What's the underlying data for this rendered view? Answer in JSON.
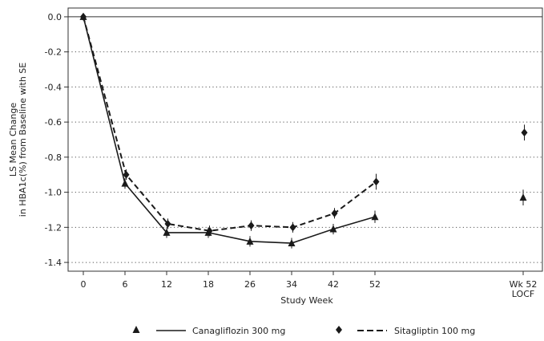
{
  "chart_data": {
    "type": "line",
    "title": "",
    "ylabel_lines": [
      "LS Mean Change",
      "in HBA1c(%) from Baseline with SE"
    ],
    "xlabel": "Study Week",
    "ylim": [
      -1.45,
      0.05
    ],
    "yticks": [
      0.0,
      -0.2,
      -0.4,
      -0.6,
      -0.8,
      -1.0,
      -1.2,
      -1.4
    ],
    "ytick_labels": [
      "0.0",
      "-0.2",
      "-0.4",
      "-0.6",
      "-0.8",
      "-1.0",
      "-1.2",
      "-1.4"
    ],
    "grid": "horizontal-dotted",
    "reference_line_y": 0.0,
    "categories": [
      "0",
      "6",
      "12",
      "18",
      "26",
      "34",
      "42",
      "52"
    ],
    "xtick_labels": [
      {
        "lines": [
          "0"
        ]
      },
      {
        "lines": [
          "6"
        ]
      },
      {
        "lines": [
          "12"
        ]
      },
      {
        "lines": [
          "18"
        ]
      },
      {
        "lines": [
          "26"
        ]
      },
      {
        "lines": [
          "34"
        ]
      },
      {
        "lines": [
          "42"
        ]
      },
      {
        "lines": [
          "52"
        ]
      },
      {
        "lines": [
          "Wk 52",
          "LOCF"
        ]
      }
    ],
    "series": [
      {
        "name": "Canagliflozin 300 mg",
        "marker": "triangle",
        "line": "solid",
        "color": "#1a1a1a",
        "values": [
          0.0,
          -0.95,
          -1.23,
          -1.23,
          -1.28,
          -1.29,
          -1.21,
          -1.14
        ],
        "se": [
          0.0,
          0.03,
          0.03,
          0.03,
          0.03,
          0.03,
          0.03,
          0.035
        ],
        "locf": {
          "value": -1.03,
          "se": 0.045
        }
      },
      {
        "name": "Sitagliptin 100 mg",
        "marker": "diamond",
        "line": "dashed",
        "color": "#1a1a1a",
        "values": [
          0.0,
          -0.9,
          -1.18,
          -1.22,
          -1.19,
          -1.2,
          -1.12,
          -0.94
        ],
        "se": [
          0.0,
          0.03,
          0.03,
          0.03,
          0.03,
          0.03,
          0.03,
          0.045
        ],
        "locf": {
          "value": -0.66,
          "se": 0.045
        }
      }
    ],
    "legend_position": "bottom"
  }
}
